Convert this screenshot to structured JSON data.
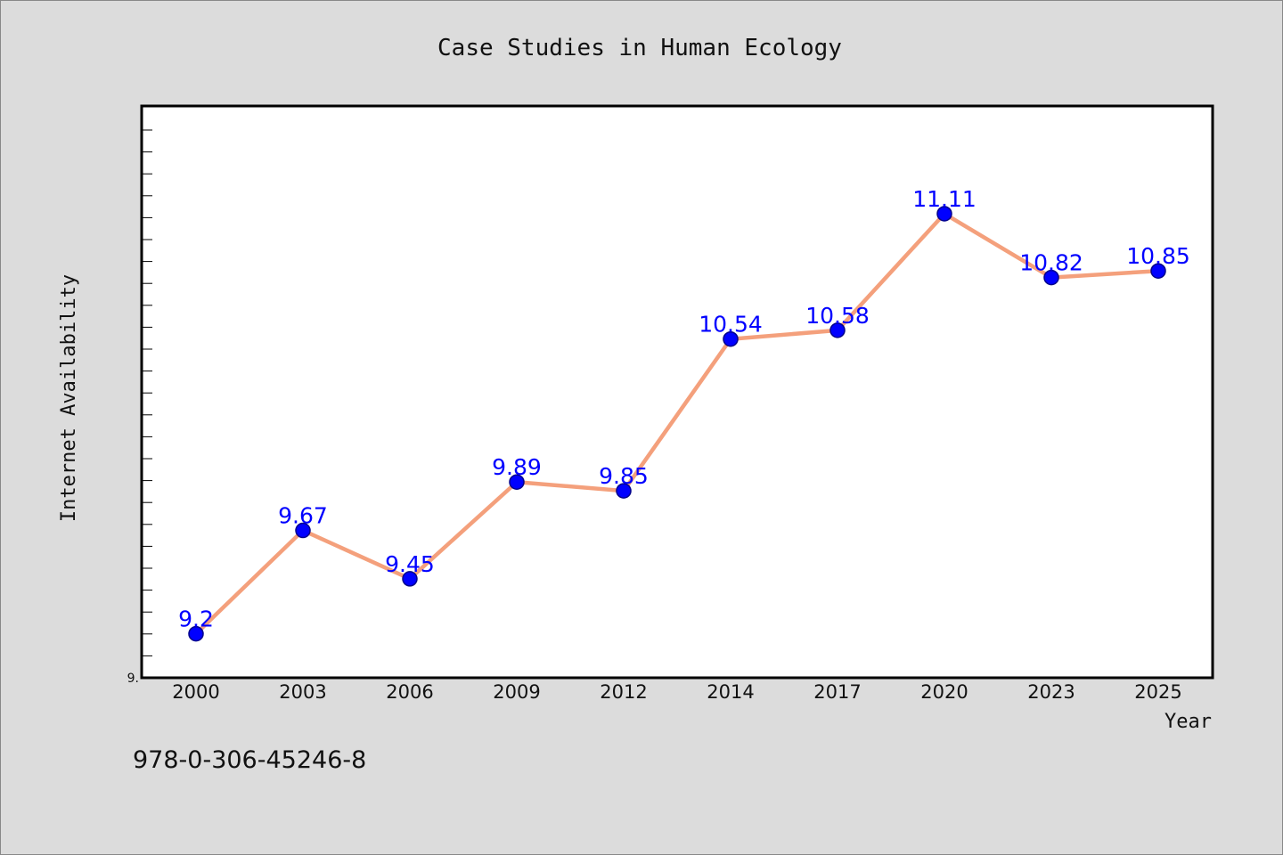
{
  "chart_data": {
    "type": "line",
    "title": "Case Studies in Human Ecology",
    "xlabel": "Year",
    "ylabel": "Internet Availability",
    "categories": [
      "2000",
      "2003",
      "2006",
      "2009",
      "2012",
      "2014",
      "2017",
      "2020",
      "2023",
      "2025"
    ],
    "values": [
      9.2,
      9.67,
      9.45,
      9.89,
      9.85,
      10.54,
      10.58,
      11.11,
      10.82,
      10.85
    ],
    "data_labels": [
      "9.2",
      "9.67",
      "9.45",
      "9.89",
      "9.85",
      "10.54",
      "10.58",
      "11.11",
      "10.82",
      "10.85"
    ],
    "ylim": [
      9.0,
      11.6
    ],
    "y_tick_label": "9.",
    "grid": false,
    "legend": "none",
    "line_color": "#f4a07c",
    "marker_color": "#0000ff",
    "label_color": "#0000ff",
    "annotation": "978-0-306-45246-8"
  }
}
